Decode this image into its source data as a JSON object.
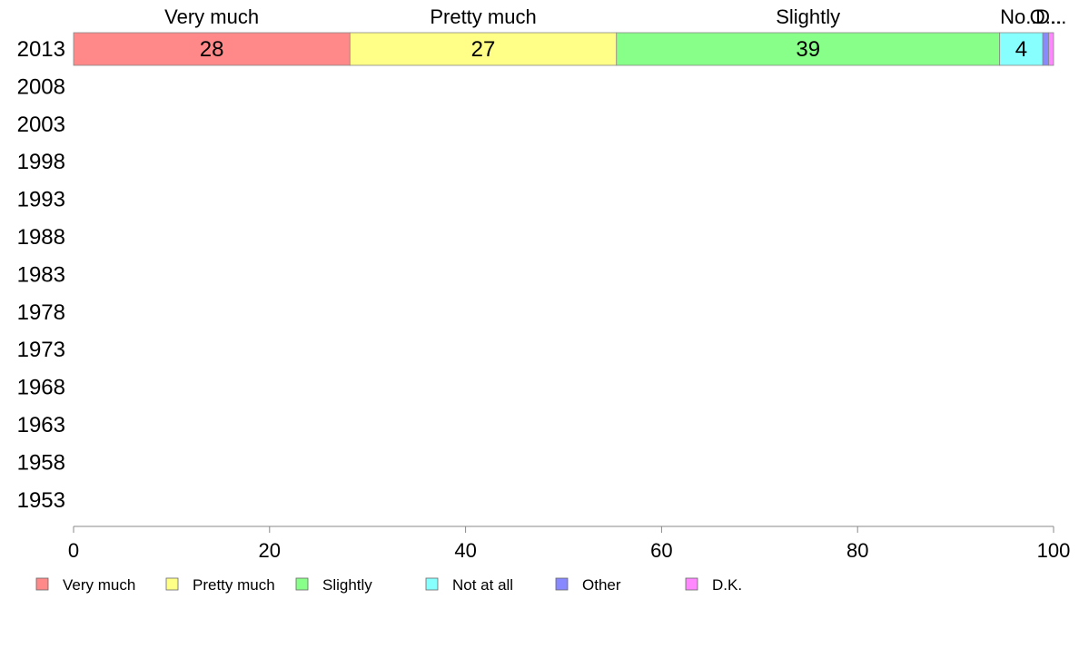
{
  "chart_data": {
    "type": "bar",
    "orientation": "horizontal",
    "stacked": true,
    "categories": [
      "2013",
      "2008",
      "2003",
      "1998",
      "1993",
      "1988",
      "1983",
      "1978",
      "1973",
      "1968",
      "1963",
      "1958",
      "1953"
    ],
    "series": [
      {
        "name": "Very much",
        "color": "#ff8888",
        "values": [
          28.2,
          null,
          null,
          null,
          null,
          null,
          null,
          null,
          null,
          null,
          null,
          null,
          null
        ],
        "label": "28"
      },
      {
        "name": "Pretty much",
        "color": "#ffff88",
        "values": [
          27.2,
          null,
          null,
          null,
          null,
          null,
          null,
          null,
          null,
          null,
          null,
          null,
          null
        ],
        "label": "27"
      },
      {
        "name": "Slightly",
        "color": "#88ff88",
        "values": [
          39.1,
          null,
          null,
          null,
          null,
          null,
          null,
          null,
          null,
          null,
          null,
          null,
          null
        ],
        "label": "39"
      },
      {
        "name": "Not at all",
        "color": "#88ffff",
        "values": [
          4.4,
          null,
          null,
          null,
          null,
          null,
          null,
          null,
          null,
          null,
          null,
          null,
          null
        ],
        "label": "4"
      },
      {
        "name": "Other",
        "color": "#8888ff",
        "values": [
          0.6,
          null,
          null,
          null,
          null,
          null,
          null,
          null,
          null,
          null,
          null,
          null,
          null
        ],
        "label": ""
      },
      {
        "name": "D.K.",
        "color": "#ff88ff",
        "values": [
          0.5,
          null,
          null,
          null,
          null,
          null,
          null,
          null,
          null,
          null,
          null,
          null,
          null
        ],
        "label": ""
      }
    ],
    "top_labels": [
      "Very much",
      "Pretty much",
      "Slightly",
      "No...",
      "O...",
      "D..."
    ],
    "xlim": [
      0,
      100
    ],
    "xticks": [
      0,
      20,
      40,
      60,
      80,
      100
    ],
    "legend_position": "bottom",
    "grid": false
  }
}
